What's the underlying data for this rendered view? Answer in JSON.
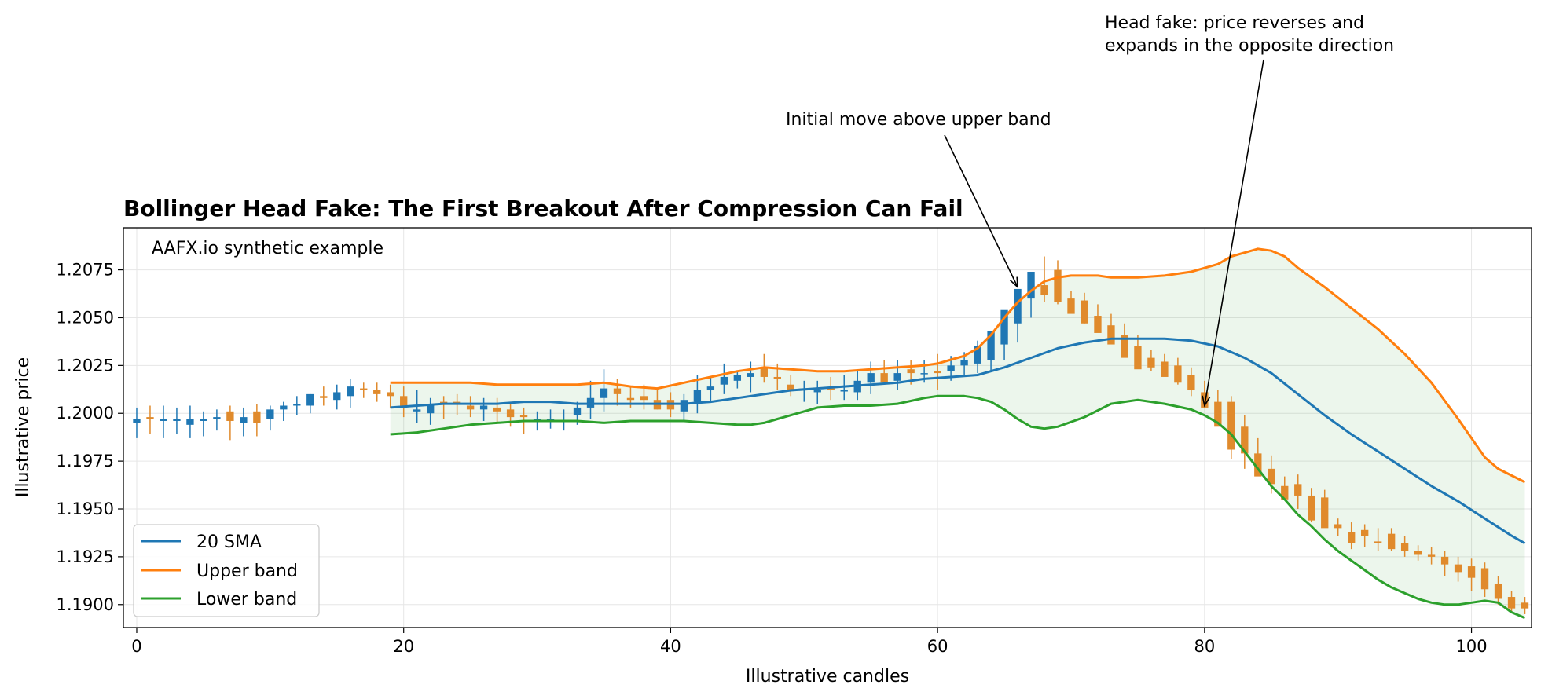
{
  "chart_data": {
    "type": "candlestick",
    "title": "Bollinger Head Fake: The First Breakout After Compression Can Fail",
    "watermark": "AAFX.io synthetic example",
    "xlabel": "Illustrative candles",
    "ylabel": "Illustrative price",
    "xlim": [
      -1,
      104.5
    ],
    "ylim": [
      1.1888,
      1.2097
    ],
    "xticks": [
      0,
      20,
      40,
      60,
      80,
      100
    ],
    "xtick_labels": [
      "0",
      "20",
      "40",
      "60",
      "80",
      "100"
    ],
    "yticks": [
      1.19,
      1.1925,
      1.195,
      1.1975,
      1.2,
      1.2025,
      1.205,
      1.2075
    ],
    "ytick_labels": [
      "1.1900",
      "1.1925",
      "1.1950",
      "1.1975",
      "1.2000",
      "1.2025",
      "1.2050",
      "1.2075"
    ],
    "grid": true,
    "legend_position": "lower-left",
    "colors": {
      "bull": "#1f77b4",
      "bear": "#e08a2c",
      "sma": "#1f77b4",
      "upper": "#ff7f0e",
      "lower": "#2ca02c",
      "band_fill": "#2ca02c"
    },
    "candles": {
      "x": [
        0,
        1,
        2,
        3,
        4,
        5,
        6,
        7,
        8,
        9,
        10,
        11,
        12,
        13,
        14,
        15,
        16,
        17,
        18,
        19,
        20,
        21,
        22,
        23,
        24,
        25,
        26,
        27,
        28,
        29,
        30,
        31,
        32,
        33,
        34,
        35,
        36,
        37,
        38,
        39,
        40,
        41,
        42,
        43,
        44,
        45,
        46,
        47,
        48,
        49,
        50,
        51,
        52,
        53,
        54,
        55,
        56,
        57,
        58,
        59,
        60,
        61,
        62,
        63,
        64,
        65,
        66,
        67,
        68,
        69,
        70,
        71,
        72,
        73,
        74,
        75,
        76,
        77,
        78,
        79,
        80,
        81,
        82,
        83,
        84,
        85,
        86,
        87,
        88,
        89,
        90,
        91,
        92,
        93,
        94,
        95,
        96,
        97,
        98,
        99,
        100,
        101,
        102,
        103,
        104
      ],
      "open": [
        1.1995,
        1.1998,
        1.1996,
        1.1996,
        1.1994,
        1.1996,
        1.1997,
        1.2001,
        1.1995,
        1.2001,
        1.1997,
        1.2002,
        1.2004,
        1.2004,
        1.2009,
        1.2007,
        1.2009,
        1.2013,
        1.2012,
        1.2011,
        1.2009,
        1.2001,
        1.2,
        1.2006,
        1.2006,
        1.2004,
        1.2002,
        1.2003,
        1.2002,
        1.1999,
        1.1997,
        1.1996,
        1.1996,
        1.1999,
        1.2003,
        1.2008,
        1.2013,
        1.2008,
        1.2009,
        1.2007,
        1.2007,
        1.2001,
        1.2006,
        1.2012,
        1.2015,
        1.2017,
        1.2019,
        1.2024,
        1.2019,
        1.2015,
        1.2012,
        1.2011,
        1.2013,
        1.2012,
        1.2011,
        1.2016,
        1.2021,
        1.2017,
        1.2023,
        1.2021,
        1.2022,
        1.2022,
        1.2025,
        1.2026,
        1.2028,
        1.2036,
        1.2047,
        1.206,
        1.2067,
        1.2075,
        1.206,
        1.2059,
        1.2051,
        1.2046,
        1.2041,
        1.2035,
        1.2029,
        1.2027,
        1.2025,
        1.202,
        1.2011,
        1.2006,
        1.2006,
        1.1993,
        1.1979,
        1.1971,
        1.1962,
        1.1963,
        1.1957,
        1.1956,
        1.1942,
        1.1938,
        1.1939,
        1.1933,
        1.1937,
        1.1932,
        1.1928,
        1.1926,
        1.1925,
        1.1921,
        1.192,
        1.1919,
        1.1911,
        1.1904,
        1.1901
      ],
      "high": [
        1.2003,
        1.2004,
        1.2004,
        1.2003,
        1.2004,
        1.2001,
        1.2002,
        1.2004,
        1.2003,
        1.2005,
        1.2004,
        1.2006,
        1.2009,
        1.201,
        1.2014,
        1.2015,
        1.2018,
        1.2016,
        1.2016,
        1.2015,
        1.2014,
        1.2012,
        1.2008,
        1.2009,
        1.201,
        1.2009,
        1.2008,
        1.2008,
        1.2005,
        1.2003,
        1.2001,
        1.2002,
        1.2002,
        1.2006,
        1.2017,
        1.2023,
        1.2018,
        1.2014,
        1.2015,
        1.2012,
        1.2011,
        1.201,
        1.202,
        1.2019,
        1.2026,
        1.2022,
        1.2027,
        1.2031,
        1.2026,
        1.202,
        1.2017,
        1.2017,
        1.2019,
        1.202,
        1.2022,
        1.2027,
        1.2028,
        1.2028,
        1.2028,
        1.2028,
        1.2031,
        1.203,
        1.2032,
        1.2038,
        1.2043,
        1.2051,
        1.2061,
        1.2066,
        1.2082,
        1.208,
        1.2064,
        1.2063,
        1.2057,
        1.2052,
        1.2047,
        1.2041,
        1.2033,
        1.2031,
        1.2029,
        1.2024,
        1.2017,
        1.2012,
        1.2009,
        1.1999,
        1.1987,
        1.1978,
        1.1967,
        1.1968,
        1.1961,
        1.196,
        1.1945,
        1.1943,
        1.1942,
        1.194,
        1.194,
        1.1936,
        1.1931,
        1.193,
        1.1928,
        1.1925,
        1.1924,
        1.1922,
        1.1915,
        1.1907,
        1.1904
      ],
      "low": [
        1.1987,
        1.1989,
        1.1987,
        1.1989,
        1.1987,
        1.1988,
        1.1991,
        1.1986,
        1.1988,
        1.1988,
        1.1991,
        1.1996,
        1.1999,
        1.2,
        1.2004,
        1.2002,
        1.2003,
        1.2008,
        1.2006,
        1.2003,
        1.1998,
        1.1995,
        1.1994,
        1.1997,
        1.1999,
        1.1998,
        1.1996,
        1.1995,
        1.1993,
        1.1989,
        1.1991,
        1.1992,
        1.1991,
        1.1994,
        1.1997,
        1.2001,
        1.2004,
        1.2003,
        1.2002,
        1.2002,
        1.1998,
        1.1996,
        1.2,
        1.2006,
        1.201,
        1.2013,
        1.2011,
        1.2016,
        1.2012,
        1.2009,
        1.2006,
        1.2005,
        1.2007,
        1.2007,
        1.2007,
        1.201,
        1.2015,
        1.2012,
        1.2015,
        1.2016,
        1.2012,
        1.2017,
        1.202,
        1.2021,
        1.2022,
        1.2028,
        1.2037,
        1.205,
        1.2058,
        1.2057,
        1.2055,
        1.2047,
        1.2043,
        1.2038,
        1.2032,
        1.2024,
        1.2022,
        1.202,
        1.2015,
        1.2009,
        1.2003,
        1.1996,
        1.1976,
        1.1971,
        1.1968,
        1.1958,
        1.1955,
        1.195,
        1.1943,
        1.1945,
        1.1936,
        1.1929,
        1.193,
        1.1928,
        1.1928,
        1.1925,
        1.1923,
        1.1921,
        1.1915,
        1.1912,
        1.1907,
        1.1904,
        1.19,
        1.1896,
        1.1895
      ],
      "close": [
        1.1997,
        1.1997,
        1.1997,
        1.1997,
        1.1997,
        1.1997,
        1.1998,
        1.1996,
        1.1998,
        1.1995,
        1.2002,
        1.2004,
        1.2005,
        1.201,
        1.2008,
        1.2011,
        1.2014,
        1.2012,
        1.201,
        1.2009,
        1.2003,
        1.2002,
        1.2005,
        1.2005,
        1.2005,
        1.2002,
        1.2004,
        1.2001,
        1.1998,
        1.1998,
        1.1997,
        1.1997,
        1.1996,
        1.2003,
        1.2008,
        1.2013,
        1.201,
        1.2007,
        1.2007,
        1.2002,
        1.2002,
        1.2007,
        1.2012,
        1.2014,
        1.2019,
        1.202,
        1.2021,
        1.2019,
        1.2018,
        1.2012,
        1.2013,
        1.2012,
        1.2012,
        1.2012,
        1.2017,
        1.2021,
        1.2016,
        1.2021,
        1.2021,
        1.2021,
        1.2021,
        1.2025,
        1.2028,
        1.2035,
        1.2043,
        1.2054,
        1.2065,
        1.2074,
        1.2062,
        1.2058,
        1.2052,
        1.2047,
        1.2042,
        1.2036,
        1.2029,
        1.2023,
        1.2024,
        1.2019,
        1.2016,
        1.2012,
        1.2003,
        1.1993,
        1.1981,
        1.1979,
        1.1967,
        1.1963,
        1.1955,
        1.1957,
        1.1944,
        1.194,
        1.194,
        1.1932,
        1.1936,
        1.1932,
        1.1929,
        1.1928,
        1.1926,
        1.1925,
        1.1921,
        1.1917,
        1.1914,
        1.1908,
        1.1903,
        1.1898,
        1.1898
      ]
    },
    "series": [
      {
        "name": "20 SMA",
        "x": [
          19,
          21,
          23,
          25,
          27,
          29,
          31,
          33,
          35,
          37,
          39,
          41,
          43,
          45,
          47,
          49,
          51,
          53,
          55,
          57,
          59,
          61,
          63,
          65,
          67,
          69,
          71,
          73,
          75,
          77,
          79,
          81,
          83,
          85,
          87,
          89,
          91,
          93,
          95,
          97,
          99,
          101,
          103,
          104
        ],
        "values": [
          1.2003,
          1.2004,
          1.2005,
          1.2005,
          1.2005,
          1.2006,
          1.2006,
          1.2005,
          1.2005,
          1.2005,
          1.2005,
          1.2005,
          1.2006,
          1.2008,
          1.201,
          1.2012,
          1.2013,
          1.2014,
          1.2015,
          1.2016,
          1.2018,
          1.2019,
          1.202,
          1.2024,
          1.2029,
          1.2034,
          1.2037,
          1.2039,
          1.2039,
          1.2039,
          1.2038,
          1.2035,
          1.2029,
          1.2021,
          1.201,
          1.1999,
          1.1989,
          1.198,
          1.1971,
          1.1962,
          1.1954,
          1.1945,
          1.1936,
          1.1932
        ]
      },
      {
        "name": "Upper band",
        "x": [
          19,
          21,
          23,
          25,
          27,
          29,
          31,
          33,
          35,
          37,
          39,
          41,
          43,
          45,
          47,
          49,
          51,
          53,
          55,
          57,
          59,
          60,
          61,
          62,
          63,
          64,
          65,
          66,
          67,
          68,
          69,
          70,
          71,
          72,
          73,
          75,
          77,
          79,
          81,
          82,
          83,
          84,
          85,
          86,
          87,
          89,
          91,
          93,
          95,
          97,
          99,
          101,
          102,
          104
        ],
        "values": [
          1.2016,
          1.2016,
          1.2016,
          1.2016,
          1.2015,
          1.2015,
          1.2015,
          1.2015,
          1.2016,
          1.2014,
          1.2013,
          1.2016,
          1.2019,
          1.2022,
          1.2024,
          1.2023,
          1.2022,
          1.2022,
          1.2023,
          1.2024,
          1.2025,
          1.2026,
          1.2028,
          1.203,
          1.2034,
          1.2041,
          1.205,
          1.2058,
          1.2064,
          1.2069,
          1.2071,
          1.2072,
          1.2072,
          1.2072,
          1.2071,
          1.2071,
          1.2072,
          1.2074,
          1.2078,
          1.2082,
          1.2084,
          1.2086,
          1.2085,
          1.2082,
          1.2076,
          1.2066,
          1.2055,
          1.2044,
          1.2031,
          1.2016,
          1.1997,
          1.1977,
          1.1971,
          1.1964
        ]
      },
      {
        "name": "Lower band",
        "x": [
          19,
          21,
          23,
          25,
          27,
          29,
          31,
          33,
          35,
          37,
          39,
          41,
          43,
          45,
          46,
          47,
          48,
          49,
          51,
          53,
          55,
          57,
          59,
          60,
          61,
          62,
          63,
          64,
          65,
          66,
          67,
          68,
          69,
          71,
          73,
          75,
          77,
          79,
          80,
          81,
          82,
          83,
          84,
          85,
          86,
          87,
          88,
          89,
          90,
          91,
          92,
          93,
          94,
          95,
          96,
          97,
          98,
          99,
          100,
          101,
          102,
          103,
          104
        ],
        "values": [
          1.1989,
          1.199,
          1.1992,
          1.1994,
          1.1995,
          1.1996,
          1.1996,
          1.1996,
          1.1995,
          1.1996,
          1.1996,
          1.1996,
          1.1995,
          1.1994,
          1.1994,
          1.1995,
          1.1997,
          1.1999,
          1.2003,
          1.2004,
          1.2004,
          1.2005,
          1.2008,
          1.2009,
          1.2009,
          1.2009,
          1.2008,
          1.2006,
          1.2002,
          1.1997,
          1.1993,
          1.1992,
          1.1993,
          1.1998,
          1.2005,
          1.2007,
          1.2005,
          1.2002,
          1.1999,
          1.1995,
          1.1989,
          1.198,
          1.1971,
          1.1962,
          1.1955,
          1.1947,
          1.1941,
          1.1934,
          1.1928,
          1.1923,
          1.1918,
          1.1913,
          1.1909,
          1.1906,
          1.1903,
          1.1901,
          1.19,
          1.19,
          1.1901,
          1.1902,
          1.1901,
          1.1896,
          1.1893
        ]
      }
    ],
    "annotations": [
      {
        "lines": [
          "Initial move above upper band"
        ],
        "target": [
          66,
          1.2066
        ]
      },
      {
        "lines": [
          "Head fake: price reverses and",
          "expands in the opposite direction"
        ],
        "target": [
          80,
          1.2004
        ]
      }
    ]
  }
}
